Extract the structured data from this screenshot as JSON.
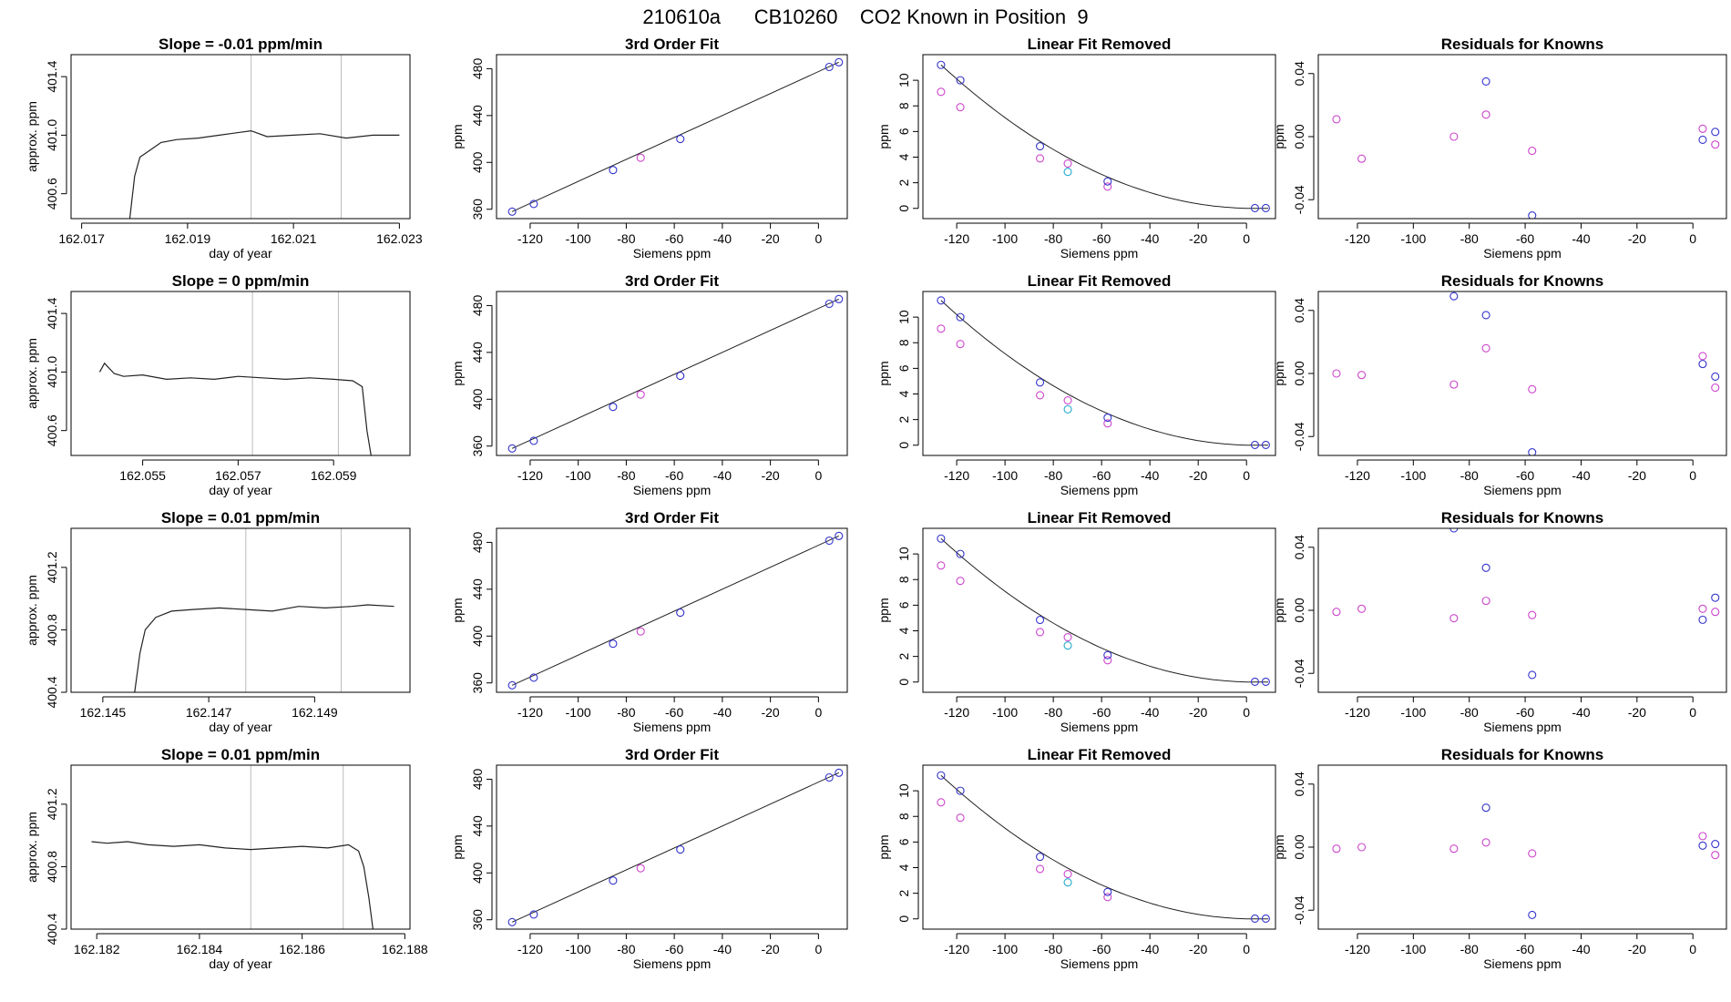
{
  "suptitle": "210610a      CB10260    CO2 Known in Position  9",
  "colors": {
    "line": "#222222",
    "cyl_pts": "#3333cc",
    "std_pts": "#cc44cc",
    "check_pts": "#22aacc",
    "guide": "#bbbbbb",
    "fit_line": "#222222"
  },
  "labels": {
    "trace_ylabel": "approx. ppm",
    "trace_xlabel": "day of year",
    "fit_title": "3rd Order Fit",
    "fit_ylabel": "ppm",
    "siemens_xlabel": "Siemens ppm",
    "lin_title": "Linear Fit Removed",
    "lin_ylabel": "ppm",
    "res_title": "Residuals for Knowns",
    "res_ylabel": "ppm"
  },
  "chart_data": [
    {
      "row": 0,
      "trace": {
        "type": "line",
        "title": "Slope =  -0.01  ppm/min",
        "xlim": [
          162.0168,
          162.0232
        ],
        "ylim": [
          400.43,
          401.55
        ],
        "xticks": [
          162.017,
          162.019,
          162.021,
          162.023
        ],
        "xtick_labels": [
          "162.017",
          "162.019",
          "162.021",
          "162.023"
        ],
        "yticks": [
          400.6,
          401.0,
          401.4
        ],
        "ytick_labels": [
          "400.6",
          "401.0",
          "401.4"
        ],
        "vlines": [
          162.0202,
          162.0219
        ],
        "x": [
          162.0179,
          162.018,
          162.0181,
          162.0183,
          162.0185,
          162.0188,
          162.0192,
          162.0196,
          162.02,
          162.0202,
          162.0205,
          162.021,
          162.0215,
          162.022,
          162.0225,
          162.023
        ],
        "y": [
          400.4,
          400.72,
          400.85,
          400.9,
          400.95,
          400.97,
          400.98,
          401.0,
          401.02,
          401.03,
          400.99,
          401.0,
          401.01,
          400.98,
          401.0,
          401.0
        ]
      },
      "fit": {
        "type": "line",
        "title": "3rd Order Fit",
        "xlim": [
          -134,
          12
        ],
        "ylim": [
          352,
          492
        ],
        "yticks": [
          360,
          400,
          440,
          480
        ],
        "ytick_labels": [
          "360",
          "400",
          "440",
          "480"
        ],
        "x": [
          -127.5,
          -118.5,
          -85.5,
          -57.5,
          4.5,
          8.5
        ],
        "y": [
          358,
          364.5,
          393.5,
          420,
          481.5,
          485.5
        ],
        "std_x": [
          -74
        ],
        "std_y": [
          404
        ]
      },
      "lin": {
        "type": "scatter",
        "title": "Linear Fit Removed",
        "xlim": [
          -134,
          12
        ],
        "ylim": [
          -0.8,
          12
        ],
        "yticks": [
          0,
          2,
          4,
          6,
          8,
          10
        ],
        "ytick_labels": [
          "0",
          "2",
          "4",
          "6",
          "8",
          "10"
        ],
        "cyl_x": [
          -126.5,
          -118.5,
          -85.5,
          -57.5,
          3.5,
          8.0
        ],
        "cyl_y": [
          11.2,
          10.0,
          4.85,
          2.1,
          0.02,
          0.02
        ],
        "std_x": [
          -126.5,
          -118.5,
          -85.5,
          -74,
          -57.5
        ],
        "std_y": [
          9.1,
          7.9,
          3.9,
          3.5,
          1.7
        ],
        "check_x": [
          -74
        ],
        "check_y": [
          2.85
        ]
      },
      "res": {
        "type": "scatter",
        "title": "Residuals for Knowns",
        "xlim": [
          -134,
          12
        ],
        "ylim": [
          -0.052,
          0.052
        ],
        "yticks": [
          -0.04,
          0.0,
          0.04
        ],
        "ytick_labels": [
          "-0.04",
          "0.00",
          "0.04"
        ],
        "cyl_x": [
          -74,
          -57.5,
          3.5,
          8.0
        ],
        "cyl_y": [
          0.035,
          -0.05,
          -0.002,
          0.003
        ],
        "std_x": [
          -127.5,
          -118.5,
          -85.5,
          -74,
          -57.5,
          3.5,
          8.0
        ],
        "std_y": [
          0.011,
          -0.014,
          0.0,
          0.014,
          -0.009,
          0.005,
          -0.005
        ]
      }
    },
    {
      "row": 1,
      "trace": {
        "type": "line",
        "title": "Slope =  0  ppm/min",
        "xlim": [
          162.0535,
          162.0606
        ],
        "ylim": [
          400.43,
          401.55
        ],
        "xticks": [
          162.055,
          162.057,
          162.059
        ],
        "xtick_labels": [
          "162.055",
          "162.057",
          "162.059"
        ],
        "yticks": [
          400.6,
          401.0,
          401.4
        ],
        "ytick_labels": [
          "400.6",
          "401.0",
          "401.4"
        ],
        "vlines": [
          162.0573,
          162.0591
        ],
        "x": [
          162.0541,
          162.0542,
          162.0544,
          162.0546,
          162.055,
          162.0555,
          162.056,
          162.0565,
          162.057,
          162.0575,
          162.058,
          162.0585,
          162.059,
          162.0594,
          162.0596,
          162.0597,
          162.0598
        ],
        "y": [
          401.0,
          401.06,
          400.99,
          400.97,
          400.98,
          400.95,
          400.96,
          400.95,
          400.97,
          400.96,
          400.95,
          400.96,
          400.95,
          400.94,
          400.9,
          400.6,
          400.4
        ]
      },
      "fit": {
        "type": "line",
        "title": "3rd Order Fit",
        "xlim": [
          -134,
          12
        ],
        "ylim": [
          352,
          492
        ],
        "yticks": [
          360,
          400,
          440,
          480
        ],
        "ytick_labels": [
          "360",
          "400",
          "440",
          "480"
        ],
        "x": [
          -127.5,
          -118.5,
          -85.5,
          -57.5,
          4.5,
          8.5
        ],
        "y": [
          358,
          364.5,
          393.5,
          420,
          481.5,
          485.5
        ],
        "std_x": [
          -74
        ],
        "std_y": [
          404
        ]
      },
      "lin": {
        "type": "scatter",
        "title": "Linear Fit Removed",
        "xlim": [
          -134,
          12
        ],
        "ylim": [
          -0.8,
          12
        ],
        "yticks": [
          0,
          2,
          4,
          6,
          8,
          10
        ],
        "ytick_labels": [
          "0",
          "2",
          "4",
          "6",
          "8",
          "10"
        ],
        "cyl_x": [
          -126.5,
          -118.5,
          -85.5,
          -57.5,
          3.5,
          8.0
        ],
        "cyl_y": [
          11.3,
          10.0,
          4.9,
          2.15,
          0.02,
          0.02
        ],
        "std_x": [
          -126.5,
          -118.5,
          -85.5,
          -74,
          -57.5
        ],
        "std_y": [
          9.1,
          7.9,
          3.9,
          3.5,
          1.7
        ],
        "check_x": [
          -74
        ],
        "check_y": [
          2.8
        ]
      },
      "res": {
        "type": "scatter",
        "title": "Residuals for Knowns",
        "xlim": [
          -134,
          12
        ],
        "ylim": [
          -0.052,
          0.052
        ],
        "yticks": [
          -0.04,
          0.0,
          0.04
        ],
        "ytick_labels": [
          "-0.04",
          "0.00",
          "0.04"
        ],
        "cyl_x": [
          -85.5,
          -74,
          -57.5,
          3.5,
          8.0
        ],
        "cyl_y": [
          0.049,
          0.037,
          -0.05,
          0.006,
          -0.002
        ],
        "std_x": [
          -127.5,
          -118.5,
          -85.5,
          -74,
          -57.5,
          3.5,
          8.0
        ],
        "std_y": [
          0.0,
          -0.001,
          -0.007,
          0.016,
          -0.01,
          0.011,
          -0.009
        ]
      }
    },
    {
      "row": 2,
      "trace": {
        "type": "line",
        "title": "Slope =  0.01  ppm/min",
        "xlim": [
          162.1444,
          162.1508
        ],
        "ylim": [
          400.4,
          401.45
        ],
        "xticks": [
          162.145,
          162.147,
          162.149
        ],
        "xtick_labels": [
          "162.145",
          "162.147",
          "162.149"
        ],
        "yticks": [
          400.4,
          400.8,
          401.2
        ],
        "ytick_labels": [
          "400.4",
          "400.8",
          "401.2"
        ],
        "vlines": [
          162.1477,
          162.1495
        ],
        "x": [
          162.1456,
          162.1457,
          162.1458,
          162.146,
          162.1463,
          162.1467,
          162.1472,
          162.1477,
          162.1482,
          162.1487,
          162.1492,
          162.1497,
          162.15,
          162.1505
        ],
        "y": [
          400.4,
          400.65,
          400.8,
          400.88,
          400.92,
          400.93,
          400.94,
          400.93,
          400.92,
          400.95,
          400.94,
          400.95,
          400.96,
          400.95
        ]
      },
      "fit": {
        "type": "line",
        "title": "3rd Order Fit",
        "xlim": [
          -134,
          12
        ],
        "ylim": [
          352,
          492
        ],
        "yticks": [
          360,
          400,
          440,
          480
        ],
        "ytick_labels": [
          "360",
          "400",
          "440",
          "480"
        ],
        "x": [
          -127.5,
          -118.5,
          -85.5,
          -57.5,
          4.5,
          8.5
        ],
        "y": [
          358,
          364.5,
          393.5,
          420,
          481.5,
          485.5
        ],
        "std_x": [
          -74
        ],
        "std_y": [
          404
        ]
      },
      "lin": {
        "type": "scatter",
        "title": "Linear Fit Removed",
        "xlim": [
          -134,
          12
        ],
        "ylim": [
          -0.8,
          12
        ],
        "yticks": [
          0,
          2,
          4,
          6,
          8,
          10
        ],
        "ytick_labels": [
          "0",
          "2",
          "4",
          "6",
          "8",
          "10"
        ],
        "cyl_x": [
          -126.5,
          -118.5,
          -85.5,
          -57.5,
          3.5,
          8.0
        ],
        "cyl_y": [
          11.2,
          10.0,
          4.85,
          2.1,
          0.02,
          0.02
        ],
        "std_x": [
          -126.5,
          -118.5,
          -85.5,
          -74,
          -57.5
        ],
        "std_y": [
          9.1,
          7.9,
          3.9,
          3.5,
          1.7
        ],
        "check_x": [
          -74
        ],
        "check_y": [
          2.85
        ]
      },
      "res": {
        "type": "scatter",
        "title": "Residuals for Knowns",
        "xlim": [
          -134,
          12
        ],
        "ylim": [
          -0.052,
          0.052
        ],
        "yticks": [
          -0.04,
          0.0,
          0.04
        ],
        "ytick_labels": [
          "-0.04",
          "0.00",
          "0.04"
        ],
        "cyl_x": [
          -85.5,
          -74,
          -57.5,
          3.5,
          8.0
        ],
        "cyl_y": [
          0.052,
          0.027,
          -0.041,
          -0.006,
          0.008
        ],
        "std_x": [
          -127.5,
          -118.5,
          -85.5,
          -74,
          -57.5,
          3.5,
          8.0
        ],
        "std_y": [
          -0.001,
          0.001,
          -0.005,
          0.006,
          -0.003,
          0.001,
          -0.001
        ]
      }
    },
    {
      "row": 3,
      "trace": {
        "type": "line",
        "title": "Slope =  0.01  ppm/min",
        "xlim": [
          162.1815,
          162.1881
        ],
        "ylim": [
          400.4,
          401.45
        ],
        "xticks": [
          162.182,
          162.184,
          162.186,
          162.188
        ],
        "xtick_labels": [
          "162.182",
          "162.184",
          "162.186",
          "162.188"
        ],
        "yticks": [
          400.4,
          400.8,
          401.2
        ],
        "ytick_labels": [
          "400.4",
          "400.8",
          "401.2"
        ],
        "vlines": [
          162.185,
          162.1868
        ],
        "x": [
          162.1819,
          162.1822,
          162.1826,
          162.183,
          162.1835,
          162.184,
          162.1845,
          162.185,
          162.1855,
          162.186,
          162.1865,
          162.1869,
          162.1871,
          162.1872,
          162.1873,
          162.1874
        ],
        "y": [
          400.96,
          400.95,
          400.96,
          400.94,
          400.93,
          400.94,
          400.92,
          400.91,
          400.92,
          400.93,
          400.92,
          400.94,
          400.9,
          400.8,
          400.6,
          400.35
        ]
      },
      "fit": {
        "type": "line",
        "title": "3rd Order Fit",
        "xlim": [
          -134,
          12
        ],
        "ylim": [
          352,
          492
        ],
        "yticks": [
          360,
          400,
          440,
          480
        ],
        "ytick_labels": [
          "360",
          "400",
          "440",
          "480"
        ],
        "x": [
          -127.5,
          -118.5,
          -85.5,
          -57.5,
          4.5,
          8.5
        ],
        "y": [
          358,
          364.5,
          393.5,
          420,
          481.5,
          485.5
        ],
        "std_x": [
          -74
        ],
        "std_y": [
          404
        ]
      },
      "lin": {
        "type": "scatter",
        "title": "Linear Fit Removed",
        "xlim": [
          -134,
          12
        ],
        "ylim": [
          -0.8,
          12
        ],
        "yticks": [
          0,
          2,
          4,
          6,
          8,
          10
        ],
        "ytick_labels": [
          "0",
          "2",
          "4",
          "6",
          "8",
          "10"
        ],
        "cyl_x": [
          -126.5,
          -118.5,
          -85.5,
          -57.5,
          3.5,
          8.0
        ],
        "cyl_y": [
          11.2,
          10.0,
          4.85,
          2.1,
          0.02,
          0.02
        ],
        "std_x": [
          -126.5,
          -118.5,
          -85.5,
          -74,
          -57.5
        ],
        "std_y": [
          9.1,
          7.9,
          3.9,
          3.5,
          1.7
        ],
        "check_x": [
          -74
        ],
        "check_y": [
          2.85
        ]
      },
      "res": {
        "type": "scatter",
        "title": "Residuals for Knowns",
        "xlim": [
          -134,
          12
        ],
        "ylim": [
          -0.052,
          0.052
        ],
        "yticks": [
          -0.04,
          0.0,
          0.04
        ],
        "ytick_labels": [
          "-0.04",
          "0.00",
          "0.04"
        ],
        "cyl_x": [
          -74,
          -57.5,
          3.5,
          8.0
        ],
        "cyl_y": [
          0.025,
          -0.043,
          0.001,
          0.002
        ],
        "std_x": [
          -127.5,
          -118.5,
          -85.5,
          -74,
          -57.5,
          3.5,
          8.0
        ],
        "std_y": [
          -0.001,
          0.0,
          -0.001,
          0.003,
          -0.004,
          0.007,
          -0.005
        ]
      }
    }
  ]
}
